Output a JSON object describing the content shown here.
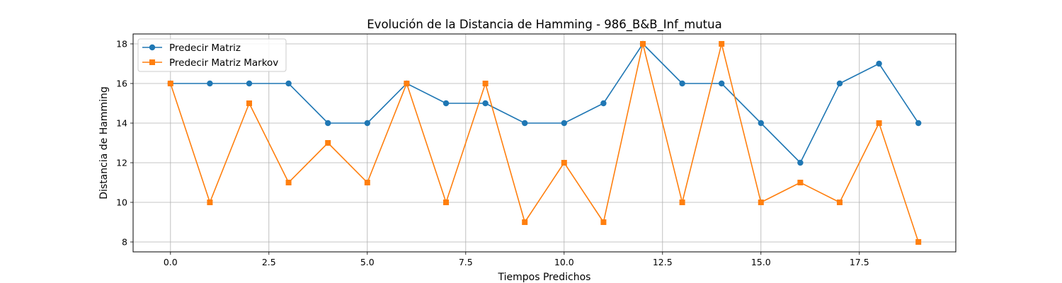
{
  "chart_data": {
    "type": "line",
    "title": "Evolución de la Distancia de Hamming - 986_B&B_Inf_mutua",
    "xlabel": "Tiempos Predichos",
    "ylabel": "Distancia de Hamming",
    "x": [
      0,
      1,
      2,
      3,
      4,
      5,
      6,
      7,
      8,
      9,
      10,
      11,
      12,
      13,
      14,
      15,
      16,
      17,
      18,
      19
    ],
    "xlim": [
      -0.95,
      19.95
    ],
    "ylim": [
      7.5,
      18.5
    ],
    "xticks": [
      0.0,
      2.5,
      5.0,
      7.5,
      10.0,
      12.5,
      15.0,
      17.5
    ],
    "xtick_labels": [
      "0.0",
      "2.5",
      "5.0",
      "7.5",
      "10.0",
      "12.5",
      "15.0",
      "17.5"
    ],
    "yticks": [
      8,
      10,
      12,
      14,
      16,
      18
    ],
    "ytick_labels": [
      "8",
      "10",
      "12",
      "14",
      "16",
      "18"
    ],
    "grid": true,
    "legend_position": "top-left",
    "series": [
      {
        "name": "Predecir Matriz",
        "color": "#1f77b4",
        "marker": "circle",
        "values": [
          16,
          16,
          16,
          16,
          14,
          14,
          16,
          15,
          15,
          14,
          14,
          15,
          18,
          16,
          16,
          14,
          12,
          16,
          17,
          14
        ]
      },
      {
        "name": "Predecir Matriz Markov",
        "color": "#ff7f0e",
        "marker": "square",
        "values": [
          16,
          10,
          15,
          11,
          13,
          11,
          16,
          10,
          16,
          9,
          12,
          9,
          18,
          10,
          18,
          10,
          11,
          10,
          14,
          8
        ]
      }
    ]
  }
}
